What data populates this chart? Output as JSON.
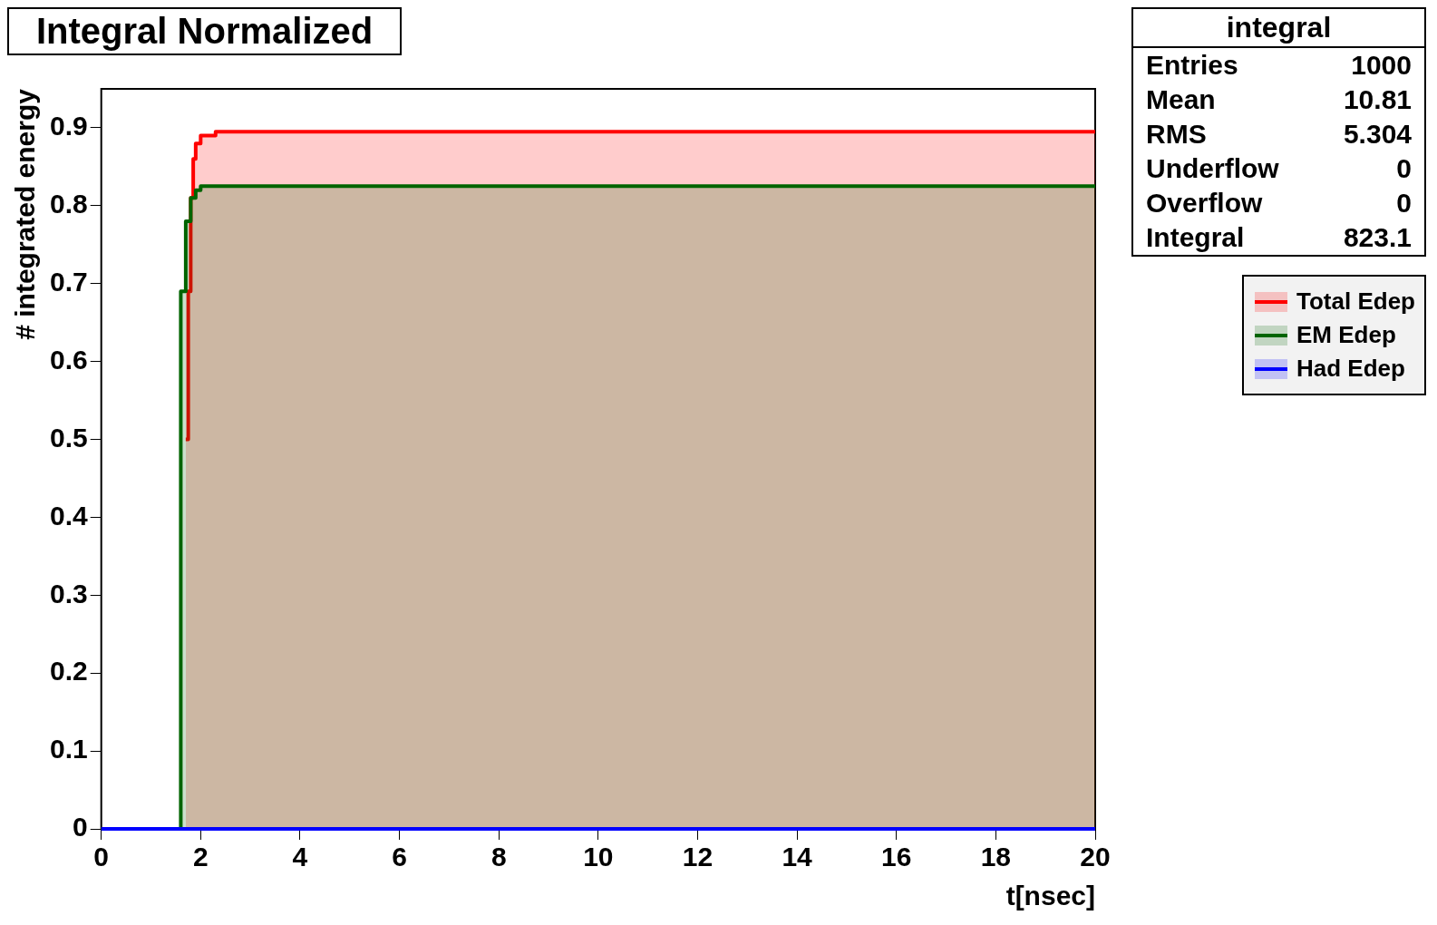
{
  "chart_data": {
    "type": "area",
    "title": "Integral Normalized",
    "xlabel": "t[nsec]",
    "ylabel": "# integrated energy",
    "x": [
      0,
      1.6,
      1.65,
      1.7,
      1.75,
      1.8,
      1.9,
      2.0,
      2.2,
      2.4,
      20
    ],
    "series": [
      {
        "name": "Total Edep",
        "color": "#ff0000",
        "x": [
          1.7,
          1.75,
          1.8,
          1.85,
          1.9,
          2.0,
          2.3,
          20
        ],
        "values": [
          0.5,
          0.69,
          0.81,
          0.86,
          0.88,
          0.89,
          0.895,
          0.895
        ]
      },
      {
        "name": "EM Edep",
        "color": "#006400",
        "values": [
          0,
          0.69,
          0.69,
          0.78,
          0.78,
          0.81,
          0.82,
          0.825,
          0.825,
          0.825,
          0.825
        ]
      },
      {
        "name": "Had Edep",
        "type": "step",
        "color": "#0000ff",
        "values": [
          0,
          0,
          0,
          0,
          0,
          0,
          0,
          0,
          0,
          0,
          0
        ]
      }
    ],
    "xlim": [
      0,
      20
    ],
    "xticks": [
      0,
      2,
      4,
      6,
      8,
      10,
      12,
      14,
      16,
      18,
      20
    ],
    "ylim": [
      0,
      0.95
    ],
    "yticks": [
      0,
      0.1,
      0.2,
      0.3,
      0.4,
      0.5,
      0.6,
      0.7,
      0.8,
      0.9
    ],
    "grid": false,
    "legend": "right",
    "annotations": [
      "integral",
      "Entries 1000",
      "Mean 10.81",
      "RMS 5.304",
      "Underflow 0",
      "Overflow 0",
      "Integral 823.1"
    ]
  }
}
